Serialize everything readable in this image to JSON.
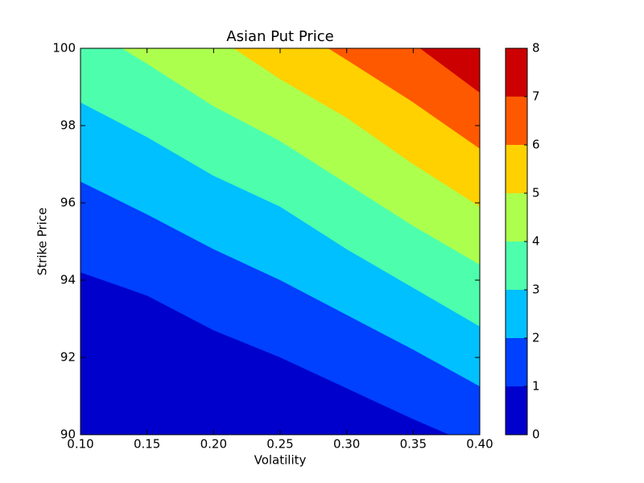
{
  "chart_data": {
    "type": "contour",
    "title": "Asian Put Price",
    "x_label": "Volatility",
    "y_label": "Strike Price",
    "xlim": [
      0.1,
      0.4
    ],
    "ylim": [
      90,
      100
    ],
    "xticks": [
      {
        "value": 0.1,
        "label": "0.10"
      },
      {
        "value": 0.15,
        "label": "0.15"
      },
      {
        "value": 0.2,
        "label": "0.20"
      },
      {
        "value": 0.25,
        "label": "0.25"
      },
      {
        "value": 0.3,
        "label": "0.30"
      },
      {
        "value": 0.35,
        "label": "0.35"
      },
      {
        "value": 0.4,
        "label": "0.40"
      }
    ],
    "yticks": [
      90,
      92,
      94,
      96,
      98,
      100
    ],
    "levels": [
      0,
      1,
      2,
      3,
      4,
      5,
      6,
      7,
      8
    ],
    "colors": [
      "#0000cc",
      "#0040ff",
      "#00c0ff",
      "#4dffad",
      "#adff4d",
      "#ffd100",
      "#ff5900",
      "#cc0000"
    ],
    "contours": [
      {
        "level": 1,
        "x": [
          0.1,
          0.15,
          0.2,
          0.25,
          0.3,
          0.35,
          0.377
        ],
        "y": [
          94.2,
          93.6,
          92.7,
          92.0,
          91.2,
          90.4,
          90.0
        ]
      },
      {
        "level": 2,
        "x": [
          0.1,
          0.15,
          0.2,
          0.25,
          0.3,
          0.35,
          0.4
        ],
        "y": [
          96.55,
          95.7,
          94.8,
          94.0,
          93.1,
          92.2,
          91.25
        ]
      },
      {
        "level": 3,
        "x": [
          0.1,
          0.15,
          0.2,
          0.25,
          0.3,
          0.35,
          0.4
        ],
        "y": [
          98.6,
          97.7,
          96.7,
          95.9,
          94.8,
          93.8,
          92.8
        ]
      },
      {
        "level": 4,
        "x": [
          0.131,
          0.15,
          0.2,
          0.25,
          0.3,
          0.35,
          0.4
        ],
        "y": [
          100,
          99.6,
          98.5,
          97.6,
          96.5,
          95.4,
          94.4
        ]
      },
      {
        "level": 5,
        "x": [
          0.215,
          0.25,
          0.3,
          0.35,
          0.4
        ],
        "y": [
          100,
          99.2,
          98.2,
          97.0,
          95.9
        ]
      },
      {
        "level": 6,
        "x": [
          0.286,
          0.3,
          0.35,
          0.4
        ],
        "y": [
          100,
          99.7,
          98.6,
          97.4
        ]
      },
      {
        "level": 7,
        "x": [
          0.355,
          0.4
        ],
        "y": [
          100,
          98.85
        ]
      }
    ]
  }
}
